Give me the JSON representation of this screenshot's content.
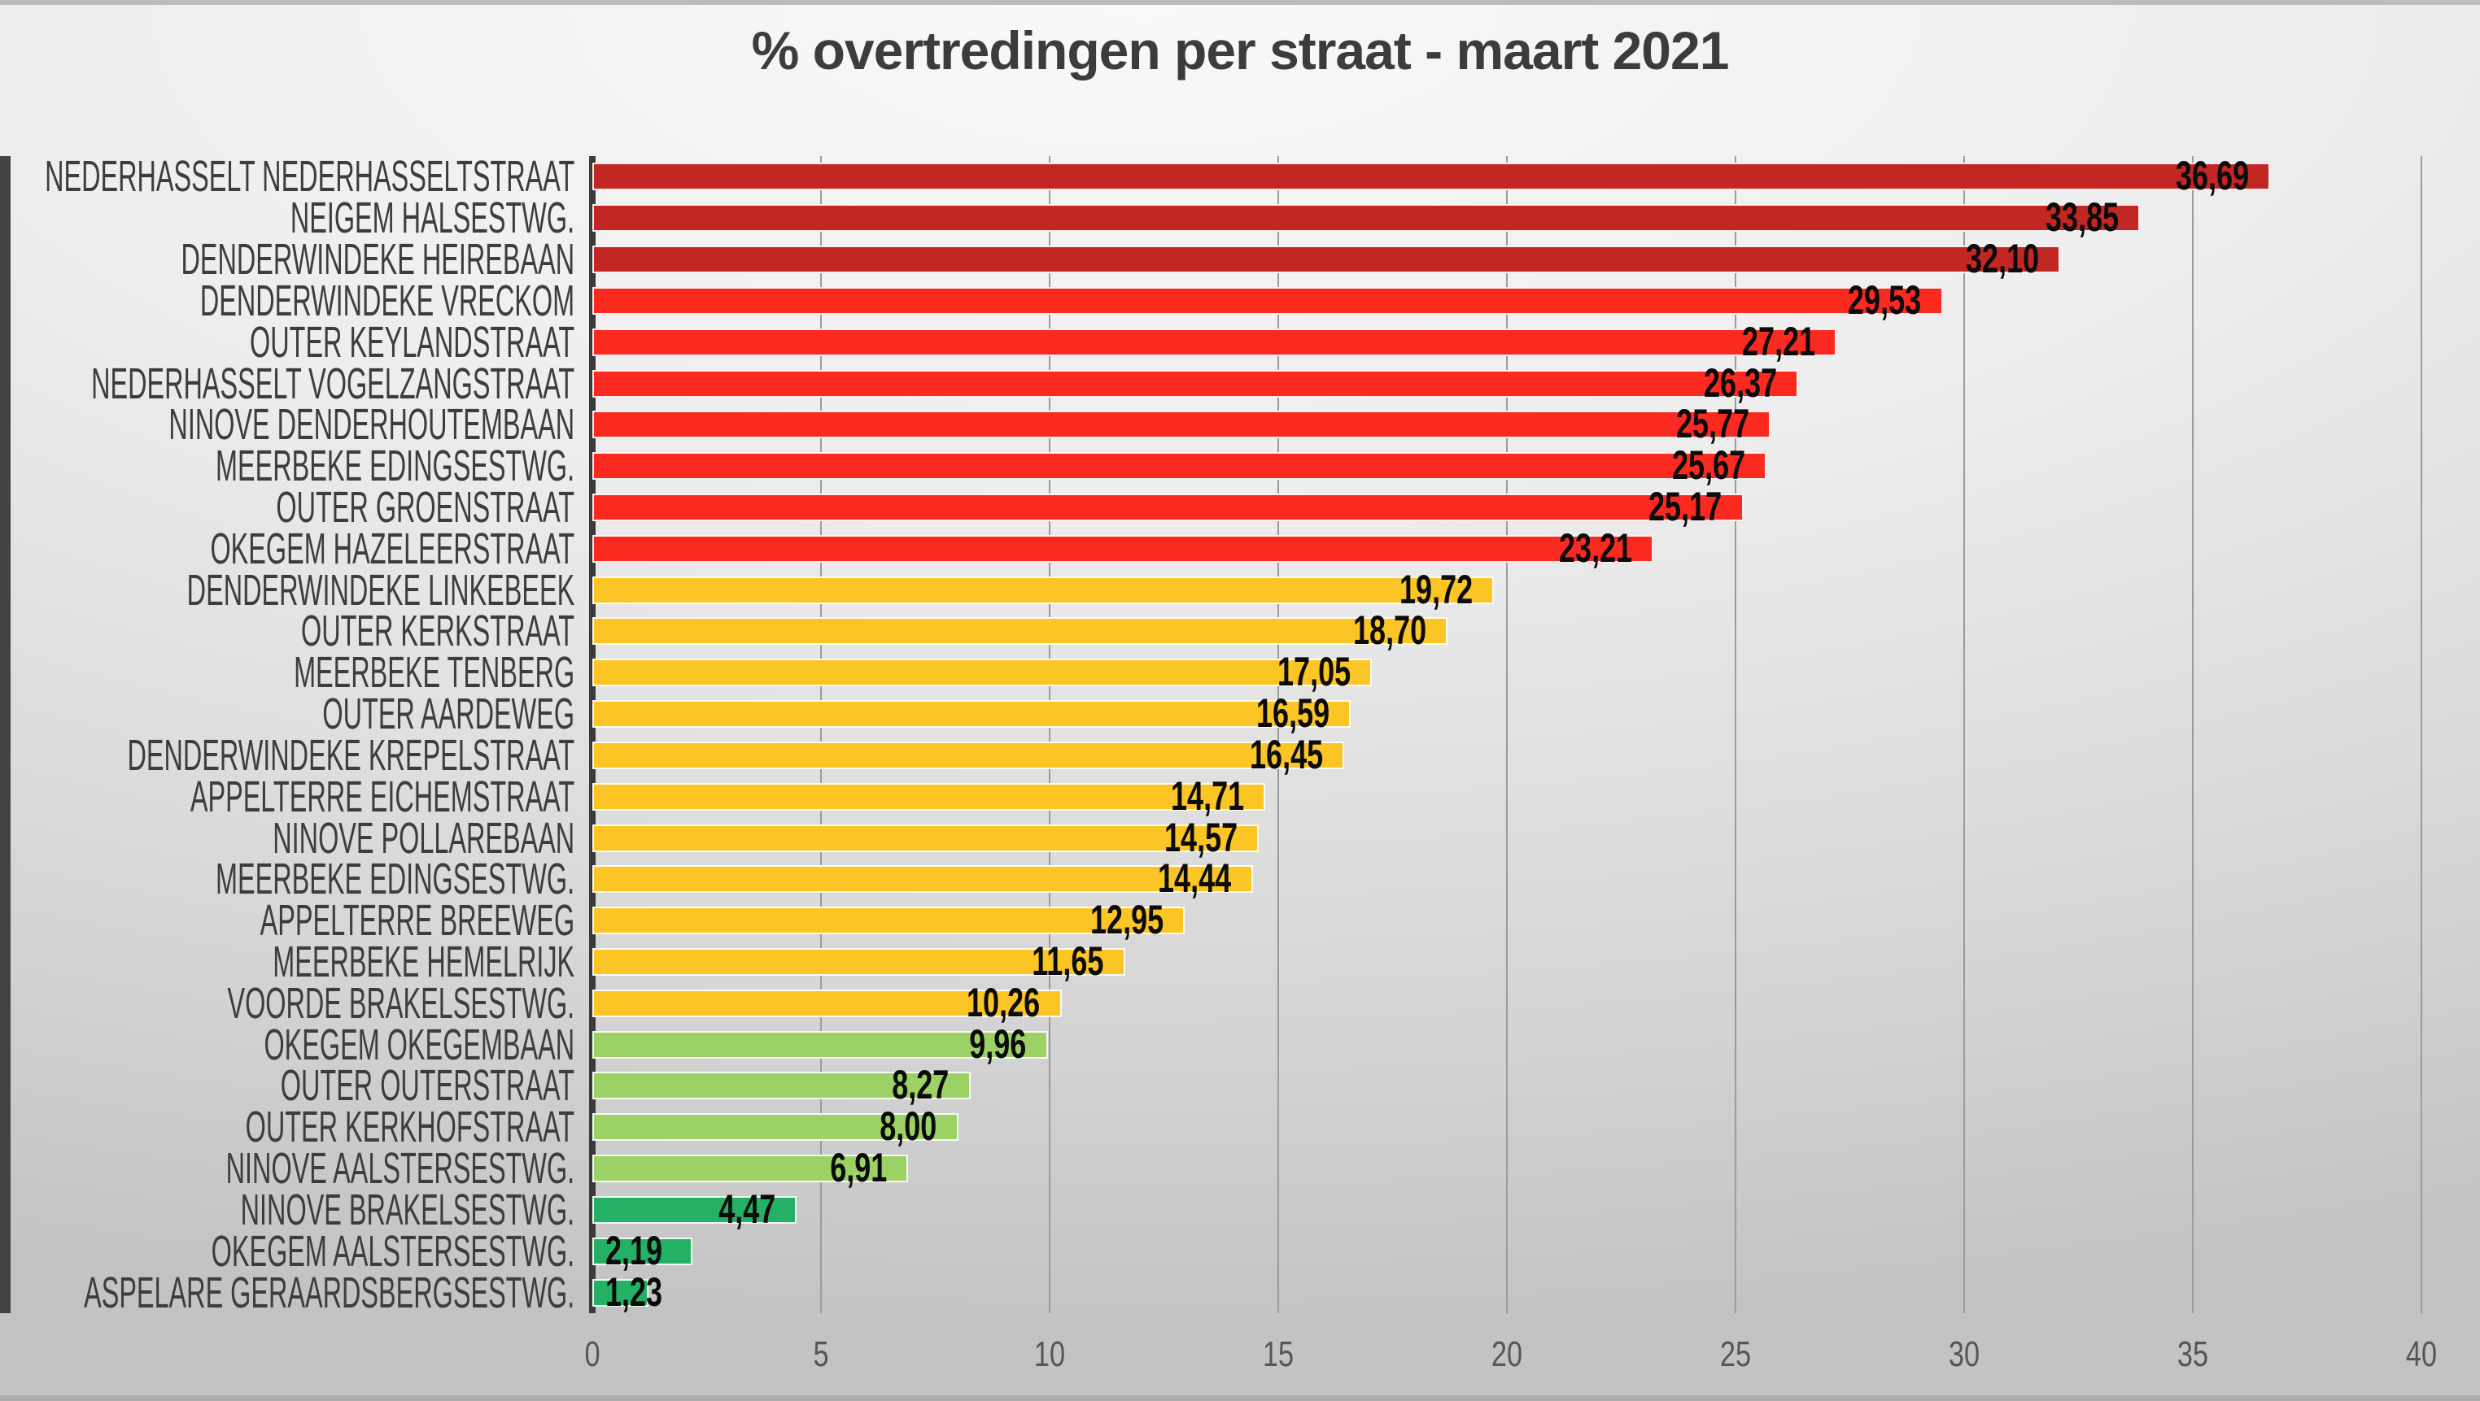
{
  "title": "% overtredingen per straat - maart 2021",
  "palette": {
    "dark_red": "#C32723",
    "red": "#FA2A21",
    "amber": "#FCC526",
    "light_green": "#9CD265",
    "green": "#25B165",
    "title_color": "#3C3C3C",
    "category_label_color": "#3D3D3D",
    "tick_label_color": "#565656",
    "axis_line_color": "#3A3A3A",
    "gridline_color": "#9B9B9B",
    "value_label_color": "#0B0B0B",
    "background": "#E0E0E0"
  },
  "chart_data": {
    "type": "bar",
    "orientation": "horizontal",
    "title": "% overtredingen per straat - maart 2021",
    "xlabel": "",
    "ylabel": "",
    "xlim": [
      0,
      40
    ],
    "x_ticks": [
      "0",
      "5",
      "10",
      "15",
      "20",
      "25",
      "30",
      "35",
      "40"
    ],
    "grid": true,
    "legend": false,
    "decimal_separator": ",",
    "bars": [
      {
        "category": "NEDERHASSELT NEDERHASSELTSTRAAT",
        "value": 36.69,
        "label": "36,69",
        "color": "#C32723"
      },
      {
        "category": "NEIGEM HALSESTWG.",
        "value": 33.85,
        "label": "33,85",
        "color": "#C32723"
      },
      {
        "category": "DENDERWINDEKE HEIREBAAN",
        "value": 32.1,
        "label": "32,10",
        "color": "#C32723"
      },
      {
        "category": "DENDERWINDEKE VRECKOM",
        "value": 29.53,
        "label": "29,53",
        "color": "#FA2A21"
      },
      {
        "category": "OUTER KEYLANDSTRAAT",
        "value": 27.21,
        "label": "27,21",
        "color": "#FA2A21"
      },
      {
        "category": "NEDERHASSELT VOGELZANGSTRAAT",
        "value": 26.37,
        "label": "26,37",
        "color": "#FA2A21"
      },
      {
        "category": "NINOVE DENDERHOUTEMBAAN",
        "value": 25.77,
        "label": "25,77",
        "color": "#FA2A21"
      },
      {
        "category": "MEERBEKE EDINGSESTWG.",
        "value": 25.67,
        "label": "25,67",
        "color": "#FA2A21"
      },
      {
        "category": "OUTER GROENSTRAAT",
        "value": 25.17,
        "label": "25,17",
        "color": "#FA2A21"
      },
      {
        "category": "OKEGEM HAZELEERSTRAAT",
        "value": 23.21,
        "label": "23,21",
        "color": "#FA2A21"
      },
      {
        "category": "DENDERWINDEKE LINKEBEEK",
        "value": 19.72,
        "label": "19,72",
        "color": "#FCC526"
      },
      {
        "category": "OUTER KERKSTRAAT",
        "value": 18.7,
        "label": "18,70",
        "color": "#FCC526"
      },
      {
        "category": "MEERBEKE TENBERG",
        "value": 17.05,
        "label": "17,05",
        "color": "#FCC526"
      },
      {
        "category": "OUTER AARDEWEG",
        "value": 16.59,
        "label": "16,59",
        "color": "#FCC526"
      },
      {
        "category": "DENDERWINDEKE KREPELSTRAAT",
        "value": 16.45,
        "label": "16,45",
        "color": "#FCC526"
      },
      {
        "category": "APPELTERRE EICHEMSTRAAT",
        "value": 14.71,
        "label": "14,71",
        "color": "#FCC526"
      },
      {
        "category": "NINOVE POLLAREBAAN",
        "value": 14.57,
        "label": "14,57",
        "color": "#FCC526"
      },
      {
        "category": "MEERBEKE EDINGSESTWG.",
        "value": 14.44,
        "label": "14,44",
        "color": "#FCC526"
      },
      {
        "category": "APPELTERRE BREEWEG",
        "value": 12.95,
        "label": "12,95",
        "color": "#FCC526"
      },
      {
        "category": "MEERBEKE HEMELRIJK",
        "value": 11.65,
        "label": "11,65",
        "color": "#FCC526"
      },
      {
        "category": "VOORDE BRAKELSESTWG.",
        "value": 10.26,
        "label": "10,26",
        "color": "#FCC526"
      },
      {
        "category": "OKEGEM OKEGEMBAAN",
        "value": 9.96,
        "label": "9,96",
        "color": "#9CD265"
      },
      {
        "category": "OUTER OUTERSTRAAT",
        "value": 8.27,
        "label": "8,27",
        "color": "#9CD265"
      },
      {
        "category": "OUTER KERKHOFSTRAAT",
        "value": 8.0,
        "label": "8,00",
        "color": "#9CD265"
      },
      {
        "category": "NINOVE AALSTERSESTWG.",
        "value": 6.91,
        "label": "6,91",
        "color": "#9CD265"
      },
      {
        "category": "NINOVE BRAKELSESTWG.",
        "value": 4.47,
        "label": "4,47",
        "color": "#25B165"
      },
      {
        "category": "OKEGEM AALSTERSESTWG.",
        "value": 2.19,
        "label": "2,19",
        "color": "#25B165"
      },
      {
        "category": "ASPELARE GERAARDSBERGSESTWG.",
        "value": 1.23,
        "label": "1,23",
        "color": "#25B165"
      }
    ]
  }
}
